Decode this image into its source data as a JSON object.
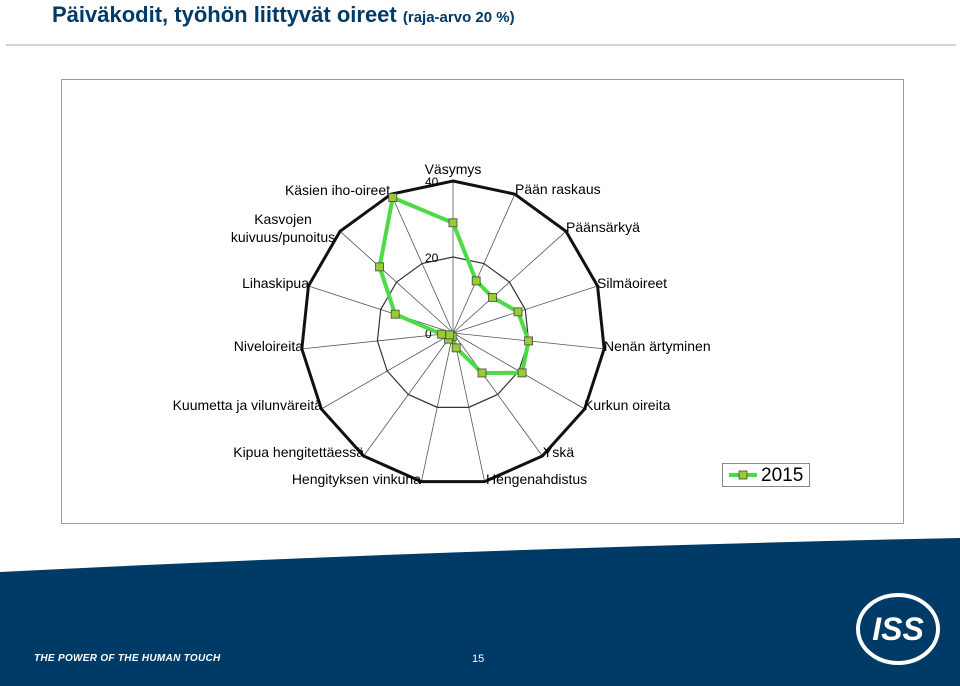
{
  "header": {
    "title": "Päiväkodit, työhön liittyvät oireet",
    "subtitle": "(raja-arvo 20 %)"
  },
  "chart_data": {
    "type": "radar",
    "categories": [
      "Väsymys",
      "Pään raskaus",
      "Päänsärkyä",
      "Silmäoireet",
      "Nenän ärtyminen",
      "Kurkun oireita",
      "Yskä",
      "Hengenahdistus",
      "Hengityksen vinkuna",
      "Kipua hengitettäessä",
      "Kuumetta ja vilunväreitä",
      "Niveloireita",
      "Lihaskipua",
      "Kasvojen kuivuus/punoitus",
      "Käsien iho-oireet"
    ],
    "series": [
      {
        "name": "2015",
        "values": [
          29,
          15,
          14,
          18,
          20,
          21,
          13,
          4,
          1,
          2,
          1,
          3,
          16,
          26,
          39
        ],
        "color": "#4cdb44",
        "marker_color": "#99cc33"
      }
    ],
    "rlim": [
      0,
      40
    ],
    "tick_labels": [
      "0",
      "20",
      "40"
    ],
    "legend_position": "bottom-right",
    "grid": true
  },
  "footer": {
    "tagline": "THE POWER OF THE HUMAN TOUCH",
    "page_number": "15",
    "logo_text": "ISS",
    "band_color": "#003a66"
  }
}
